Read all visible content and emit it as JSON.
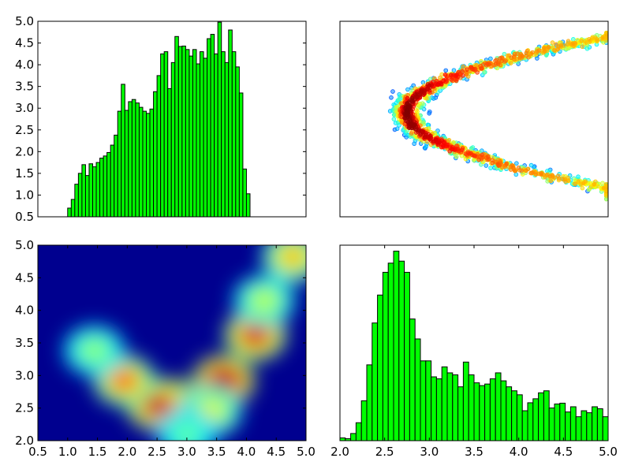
{
  "figure": {
    "background": "#ffffff"
  },
  "chart_data": [
    {
      "id": "top-left-histogram",
      "type": "bar",
      "bar_color": "#00ff00",
      "edge_color": "#000000",
      "x_range": [
        0.5,
        5.0
      ],
      "y_range": [
        0.5,
        5.0
      ],
      "y_ticks": [
        "0.5",
        "1.0",
        "1.5",
        "2.0",
        "2.5",
        "3.0",
        "3.5",
        "4.0",
        "4.5",
        "5.0"
      ],
      "x_ticks": [],
      "bin_start": 1.0,
      "bin_width": 0.06,
      "values": [
        0.7,
        0.9,
        1.25,
        1.5,
        1.7,
        1.45,
        1.72,
        1.65,
        1.75,
        1.85,
        1.9,
        1.98,
        2.15,
        2.38,
        2.93,
        3.55,
        2.95,
        3.15,
        3.2,
        3.12,
        3.02,
        2.93,
        2.88,
        2.98,
        3.38,
        3.75,
        4.25,
        4.3,
        3.45,
        4.05,
        4.65,
        4.42,
        4.43,
        4.35,
        4.2,
        4.35,
        4.02,
        4.3,
        4.15,
        4.6,
        4.7,
        4.25,
        4.98,
        4.3,
        4.05,
        4.8,
        4.3,
        3.95,
        3.35,
        1.6,
        1.03
      ]
    },
    {
      "id": "top-right-scatter",
      "type": "scatter",
      "description_colormap": "jet",
      "x_range": [
        2.0,
        5.0
      ],
      "y_range": [
        0.5,
        5.0
      ],
      "x_ticks": [],
      "y_ticks": [],
      "curve": "x = 2.75 + 0.75 * (y - 2.9)^2",
      "y_span": [
        1.0,
        4.7
      ]
    },
    {
      "id": "bottom-left-density",
      "type": "heatmap",
      "colormap": "jet",
      "x_range": [
        0.5,
        5.0
      ],
      "y_range": [
        2.0,
        5.0
      ],
      "x_ticks": [
        "0.5",
        "1.0",
        "1.5",
        "2.0",
        "2.5",
        "3.0",
        "3.5",
        "4.0",
        "4.5",
        "5.0"
      ],
      "y_ticks": [
        "2.0",
        "2.5",
        "3.0",
        "3.5",
        "4.0",
        "4.5",
        "5.0"
      ],
      "blobs": [
        {
          "x": 2.78,
          "y": 2.55,
          "intensity": 1.0
        },
        {
          "x": 2.5,
          "y": 2.55,
          "intensity": 0.8
        },
        {
          "x": 3.62,
          "y": 2.92,
          "intensity": 0.9
        },
        {
          "x": 1.95,
          "y": 2.92,
          "intensity": 0.65
        },
        {
          "x": 4.15,
          "y": 3.62,
          "intensity": 0.78
        },
        {
          "x": 4.78,
          "y": 4.82,
          "intensity": 0.55
        },
        {
          "x": 1.45,
          "y": 3.38,
          "intensity": 0.35
        },
        {
          "x": 3.4,
          "y": 2.45,
          "intensity": 0.45
        },
        {
          "x": 4.3,
          "y": 4.15,
          "intensity": 0.4
        },
        {
          "x": 3.0,
          "y": 2.1,
          "intensity": 0.3
        }
      ]
    },
    {
      "id": "bottom-right-histogram",
      "type": "bar",
      "bar_color": "#00ff00",
      "edge_color": "#000000",
      "x_range": [
        2.0,
        5.0
      ],
      "y_range": [
        0,
        4.9
      ],
      "x_ticks": [
        "2.0",
        "2.5",
        "3.0",
        "3.5",
        "4.0",
        "4.5",
        "5.0"
      ],
      "y_ticks": [],
      "bin_start": 2.0,
      "bin_width": 0.06,
      "values": [
        0.07,
        0.05,
        0.18,
        0.45,
        1.0,
        1.9,
        2.95,
        3.65,
        4.22,
        4.45,
        4.75,
        4.5,
        4.22,
        3.05,
        2.55,
        2.0,
        2.0,
        1.6,
        1.55,
        1.85,
        1.7,
        1.65,
        1.35,
        1.97,
        1.65,
        1.45,
        1.38,
        1.42,
        1.55,
        1.7,
        1.5,
        1.35,
        1.25,
        1.15,
        0.75,
        0.95,
        1.05,
        1.2,
        1.25,
        0.82,
        0.92,
        0.94,
        0.72,
        0.85,
        0.6,
        0.75,
        0.7,
        0.85,
        0.8,
        0.6,
        0.65
      ]
    }
  ]
}
